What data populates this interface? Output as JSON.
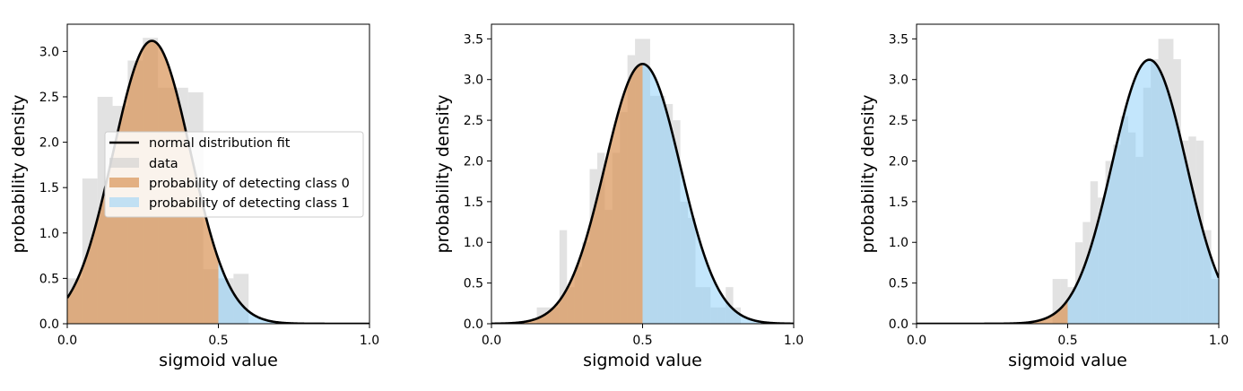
{
  "chart_data": [
    {
      "type": "histogram",
      "xlabel": "sigmoid value",
      "ylabel": "probability density",
      "xlim": [
        0,
        1
      ],
      "ylim": [
        0,
        3.3
      ],
      "xticks": [
        "0.0",
        "0.5",
        "1.0"
      ],
      "yticks": [
        "0.0",
        "0.5",
        "1.0",
        "1.5",
        "2.0",
        "2.5",
        "3.0"
      ],
      "legend": {
        "placement": "center-left",
        "entries": [
          "normal distribution fit",
          "data",
          "probability of detecting class 0",
          "probability of detecting class 1"
        ]
      },
      "fit": {
        "mean": 0.28,
        "std": 0.128
      },
      "hist": {
        "bin_width": 0.05,
        "bin_starts": [
          0.0,
          0.05,
          0.1,
          0.15,
          0.2,
          0.25,
          0.3,
          0.35,
          0.4,
          0.45,
          0.5,
          0.55
        ],
        "values": [
          0.5,
          1.6,
          2.5,
          2.4,
          2.9,
          3.15,
          2.6,
          2.6,
          2.55,
          0.6,
          0.5,
          0.55
        ]
      }
    },
    {
      "type": "histogram",
      "xlabel": "sigmoid value",
      "ylabel": "probability density",
      "xlim": [
        0,
        1
      ],
      "ylim": [
        0,
        3.68
      ],
      "xticks": [
        "0.0",
        "0.5",
        "1.0"
      ],
      "yticks": [
        "0.0",
        "0.5",
        "1.0",
        "1.5",
        "2.0",
        "2.5",
        "3.0",
        "3.5"
      ],
      "fit": {
        "mean": 0.5,
        "std": 0.125
      },
      "hist": {
        "bin_width": 0.025,
        "bin_starts": [
          0.15,
          0.175,
          0.2,
          0.225,
          0.25,
          0.275,
          0.3,
          0.325,
          0.35,
          0.375,
          0.4,
          0.425,
          0.45,
          0.475,
          0.5,
          0.525,
          0.55,
          0.575,
          0.6,
          0.625,
          0.65,
          0.675,
          0.7,
          0.725,
          0.75,
          0.775,
          0.8
        ],
        "values": [
          0.2,
          0.2,
          0.2,
          1.15,
          0.45,
          0.7,
          1.0,
          1.9,
          2.1,
          1.4,
          2.1,
          2.6,
          3.3,
          3.5,
          3.5,
          2.8,
          2.8,
          2.7,
          2.5,
          1.5,
          1.3,
          0.45,
          0.45,
          0.2,
          0.2,
          0.45,
          0.2
        ]
      }
    },
    {
      "type": "histogram",
      "xlabel": "sigmoid value",
      "ylabel": "probability density",
      "xlim": [
        0,
        1
      ],
      "ylim": [
        0,
        3.68
      ],
      "xticks": [
        "0.0",
        "0.5",
        "1.0"
      ],
      "yticks": [
        "0.0",
        "0.5",
        "1.0",
        "1.5",
        "2.0",
        "2.5",
        "3.0",
        "3.5"
      ],
      "fit": {
        "mean": 0.77,
        "std": 0.123
      },
      "hist": {
        "bin_width": 0.025,
        "bin_starts": [
          0.45,
          0.475,
          0.5,
          0.525,
          0.55,
          0.575,
          0.6,
          0.625,
          0.65,
          0.675,
          0.7,
          0.725,
          0.75,
          0.775,
          0.8,
          0.825,
          0.85,
          0.875,
          0.9,
          0.925,
          0.95,
          0.975
        ],
        "values": [
          0.55,
          0.55,
          0.45,
          1.0,
          1.25,
          1.75,
          1.55,
          2.0,
          2.2,
          2.55,
          2.35,
          2.05,
          2.9,
          3.25,
          3.5,
          3.5,
          3.25,
          2.25,
          2.3,
          2.25,
          1.15,
          0.55
        ]
      }
    }
  ]
}
